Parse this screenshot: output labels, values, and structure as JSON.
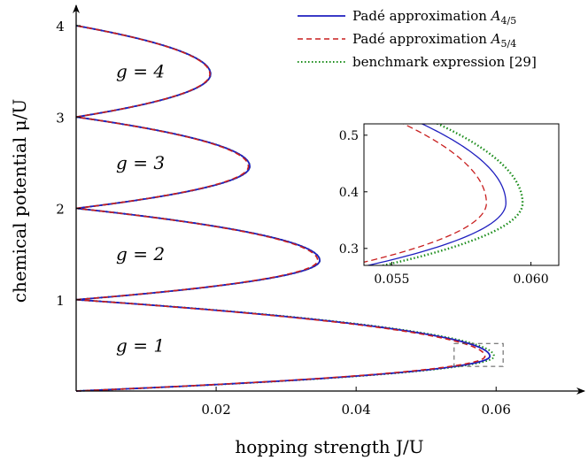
{
  "chart_data": {
    "type": "line",
    "xlabel": "hopping strength J/U",
    "ylabel": "chemical potential μ/U",
    "xlim": [
      0,
      0.07
    ],
    "ylim": [
      0,
      4.1
    ],
    "x_ticks": [
      "0.02",
      "0.04",
      "0.06"
    ],
    "y_ticks": [
      "1",
      "2",
      "3",
      "4"
    ],
    "grid": false,
    "legend_placement": "top-right",
    "legend": [
      {
        "label": "Padé approximation A4/5",
        "main": "Padé approximation ",
        "sub": "4/5",
        "color": "#1f1fbf",
        "style": "solid"
      },
      {
        "label": "Padé approximation A5/4",
        "main": "Padé approximation ",
        "sub": "5/4",
        "color": "#c81e1e",
        "style": "dashed"
      },
      {
        "label": "benchmark expression [29]",
        "main": "benchmark expression [29]",
        "sub": "",
        "color": "#1a8c1a",
        "style": "dotted"
      }
    ],
    "lobe_labels": [
      {
        "text": "g = 1",
        "x": 0.0057,
        "y": 0.5
      },
      {
        "text": "g = 2",
        "x": 0.0057,
        "y": 1.5
      },
      {
        "text": "g = 3",
        "x": 0.0057,
        "y": 2.5
      },
      {
        "text": "g = 4",
        "x": 0.0057,
        "y": 3.5
      }
    ],
    "lobes": [
      {
        "g": 1,
        "tip_mu": 0.38,
        "tips": {
          "A45": 0.0591,
          "A54": 0.0584,
          "benchmark": 0.0597
        }
      },
      {
        "g": 2,
        "tip_mu": 1.43,
        "tips": {
          "A45": 0.0348,
          "A54": 0.0345,
          "benchmark": 0.0348
        }
      },
      {
        "g": 3,
        "tip_mu": 2.46,
        "tips": {
          "A45": 0.0248,
          "A54": 0.0246,
          "benchmark": 0.0248
        }
      },
      {
        "g": 4,
        "tip_mu": 3.47,
        "tips": {
          "A45": 0.0192,
          "A54": 0.0191,
          "benchmark": 0.0192
        }
      }
    ],
    "zoom_box": {
      "xlim": [
        0.054,
        0.061
      ],
      "ylim": [
        0.27,
        0.52
      ]
    },
    "inset": {
      "xlim": [
        0.054,
        0.061
      ],
      "ylim": [
        0.27,
        0.52
      ],
      "x_ticks": [
        "0.055",
        "0.060"
      ],
      "y_ticks": [
        "0.3",
        "0.4",
        "0.5"
      ]
    }
  }
}
